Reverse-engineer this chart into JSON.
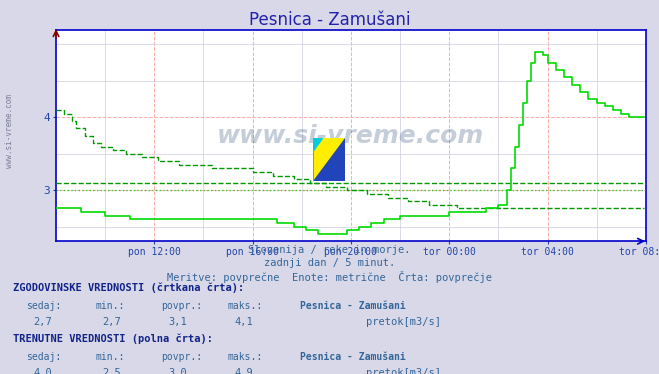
{
  "title": "Pesnica - Zamušani",
  "title_color": "#2222aa",
  "bg_color": "#d8d8e8",
  "plot_bg_color": "#ffffff",
  "grid_color_major": "#ffaaaa",
  "grid_color_minor": "#ccccdd",
  "axis_color": "#0000cc",
  "tick_color": "#2244aa",
  "text_color": "#336699",
  "subtitle1": "Slovenija / reke in morje.",
  "subtitle2": "zadnji dan / 5 minut.",
  "subtitle3": "Meritve: povprečne  Enote: metrične  Črta: povprečje",
  "xlabels": [
    "pon 12:00",
    "pon 16:00",
    "pon 20:00",
    "tor 00:00",
    "tor 04:00",
    "tor 08:00"
  ],
  "ylim_min": 2.3,
  "ylim_max": 5.2,
  "xlim_max": 288,
  "hist_line_color": "#009900",
  "curr_line_color": "#00dd00",
  "avg_hist_color": "#009900",
  "avg_curr_color": "#00cc00",
  "avg_hist_value": 3.1,
  "avg_curr_value": 3.0,
  "footer_hist_label": "ZGODOVINSKE VREDNOSTI (črtkana črta):",
  "footer_curr_label": "TRENUTNE VREDNOSTI (polna črta):",
  "col_headers": [
    "sedaj:",
    "min.:",
    "povpr.:",
    "maks.:"
  ],
  "footer_hist_vals": [
    "2,7",
    "2,7",
    "3,1",
    "4,1"
  ],
  "footer_curr_vals": [
    "4,0",
    "2,5",
    "3,0",
    "4,9"
  ],
  "station_name": "Pesnica - Zamušani",
  "unit": "pretok[m3/s]",
  "legend_hist_color": "#007700",
  "legend_curr_color": "#00bb00",
  "watermark_text": "www.si-vreme.com",
  "left_watermark": "www.si-vreme.com"
}
